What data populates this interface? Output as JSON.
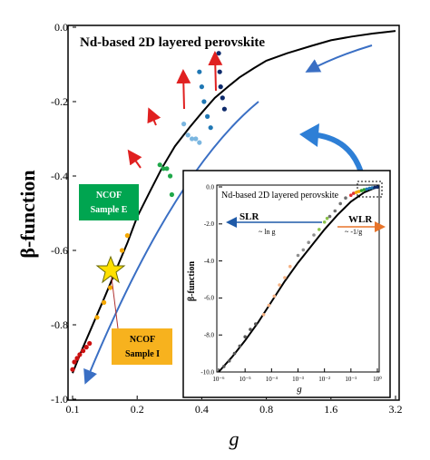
{
  "chart_data": [
    {
      "id": "main",
      "type": "scatter",
      "title": "Nd-based 2D layered perovskite",
      "xlabel": "g",
      "ylabel": "β-function",
      "x_scale": "log",
      "x_ticks": [
        "0.1",
        "0.2",
        "0.4",
        "0.8",
        "1.6",
        "3.2"
      ],
      "x_tick_values": [
        0.1,
        0.2,
        0.4,
        0.8,
        1.6,
        3.2
      ],
      "y_ticks": [
        "0.0",
        "-0.2",
        "-0.4",
        "-0.6",
        "-0.8",
        "-1.0"
      ],
      "y_tick_values": [
        0.0,
        -0.2,
        -0.4,
        -0.6,
        -0.8,
        -1.0
      ],
      "xlim": [
        0.1,
        3.2
      ],
      "ylim": [
        -1.0,
        0.0
      ],
      "grid": false,
      "annotations": [
        {
          "text": "NCOF",
          "text2": "Sample E",
          "color": "#00a550"
        },
        {
          "text": "NCOF",
          "text2": "Sample I",
          "color": "#f7b21e"
        }
      ],
      "series": [
        {
          "color": "#000000",
          "style": "line",
          "x": [
            0.1,
            0.11,
            0.12,
            0.14,
            0.16,
            0.18,
            0.2,
            0.23,
            0.26,
            0.3,
            0.35,
            0.4,
            0.46,
            0.53,
            0.6,
            0.7,
            0.8,
            1.0,
            1.3,
            1.6,
            2.0,
            2.5,
            3.2
          ],
          "y": [
            -0.93,
            -0.87,
            -0.82,
            -0.73,
            -0.65,
            -0.58,
            -0.51,
            -0.44,
            -0.38,
            -0.32,
            -0.27,
            -0.23,
            -0.19,
            -0.16,
            -0.135,
            -0.11,
            -0.09,
            -0.07,
            -0.05,
            -0.035,
            -0.025,
            -0.017,
            -0.01
          ]
        },
        {
          "color": "#cc1010",
          "style": "points",
          "x": [
            0.1,
            0.102,
            0.105,
            0.108,
            0.112,
            0.116,
            0.12
          ],
          "y": [
            -0.92,
            -0.9,
            -0.89,
            -0.88,
            -0.87,
            -0.86,
            -0.85
          ]
        },
        {
          "color": "#f5a800",
          "style": "points",
          "x": [
            0.13,
            0.14,
            0.15,
            0.16,
            0.17,
            0.18
          ],
          "y": [
            -0.78,
            -0.74,
            -0.7,
            -0.65,
            -0.6,
            -0.56
          ]
        },
        {
          "color": "#1fa84a",
          "style": "points",
          "x": [
            0.255,
            0.265,
            0.275,
            0.285,
            0.29
          ],
          "y": [
            -0.37,
            -0.38,
            -0.38,
            -0.4,
            -0.45
          ]
        },
        {
          "color": "#7bb6e0",
          "style": "points",
          "x": [
            0.33,
            0.345,
            0.36,
            0.375,
            0.39
          ],
          "y": [
            -0.26,
            -0.29,
            -0.3,
            -0.3,
            -0.31
          ]
        },
        {
          "color": "#1f77b4",
          "style": "points",
          "x": [
            0.39,
            0.4,
            0.41,
            0.425,
            0.44
          ],
          "y": [
            -0.12,
            -0.16,
            -0.2,
            -0.24,
            -0.27
          ]
        },
        {
          "color": "#0d2a6b",
          "style": "points",
          "x": [
            0.48,
            0.485,
            0.49,
            0.5,
            0.51
          ],
          "y": [
            -0.07,
            -0.12,
            -0.16,
            -0.19,
            -0.22
          ]
        }
      ]
    },
    {
      "id": "inset",
      "type": "scatter",
      "title": "Nd-based 2D layered perovskite",
      "xlabel": "g",
      "ylabel": "β-function",
      "x_scale": "log",
      "x_ticks": [
        "10⁻⁶",
        "10⁻⁵",
        "10⁻⁴",
        "10⁻³",
        "10⁻²",
        "10⁻¹",
        "10⁰"
      ],
      "x_tick_values": [
        -6,
        -5,
        -4,
        -3,
        -2,
        -1,
        0
      ],
      "y_ticks": [
        "0.0",
        "-2.0",
        "-4.0",
        "-6.0",
        "-8.0",
        "-10.0"
      ],
      "y_tick_values": [
        0,
        -2,
        -4,
        -6,
        -8,
        -10
      ],
      "xlim": [
        1e-06,
        1.0
      ],
      "ylim": [
        -10.0,
        0.0
      ],
      "grid": false,
      "annotations": [
        {
          "text": "SLR",
          "text2": "~ ln g",
          "color": "#1f5aa8"
        },
        {
          "text": "WLR",
          "text2": "~ -1/g",
          "color": "#e8742a"
        }
      ],
      "series": [
        {
          "color": "#000000",
          "style": "line",
          "x_log": [
            -6,
            -5.5,
            -5,
            -4.5,
            -4,
            -3.5,
            -3,
            -2.5,
            -2,
            -1.5,
            -1,
            -0.5,
            0
          ],
          "y": [
            -10,
            -9.2,
            -8.3,
            -7.3,
            -6.2,
            -5.1,
            -4.1,
            -3.2,
            -2.3,
            -1.5,
            -0.8,
            -0.3,
            0
          ]
        },
        {
          "color": "#555555",
          "style": "points",
          "x_log": [
            -5.8,
            -5.6,
            -5.4,
            -5.2,
            -5.0,
            -4.8,
            -4.6
          ],
          "y": [
            -9.7,
            -9.4,
            -9.0,
            -8.6,
            -8.1,
            -7.7,
            -7.4
          ]
        },
        {
          "color": "#f4b183",
          "style": "points",
          "x_log": [
            -4.3,
            -4.1,
            -3.9,
            -3.7,
            -3.5,
            -3.3
          ],
          "y": [
            -6.9,
            -6.4,
            -5.9,
            -5.3,
            -4.9,
            -4.3
          ]
        },
        {
          "color": "#909090",
          "style": "points",
          "x_log": [
            -3.0,
            -2.8,
            -2.6,
            -2.4
          ],
          "y": [
            -3.7,
            -3.4,
            -3.0,
            -2.6
          ]
        },
        {
          "color": "#8bc34a",
          "style": "points",
          "x_log": [
            -2.2,
            -2.0,
            -1.9
          ],
          "y": [
            -2.3,
            -1.9,
            -1.7
          ]
        },
        {
          "color": "#707070",
          "style": "points",
          "x_log": [
            -1.8,
            -1.6,
            -1.4,
            -1.2
          ],
          "y": [
            -1.6,
            -1.3,
            -0.9,
            -0.6
          ]
        },
        {
          "color": "#e03030",
          "style": "points",
          "x_log": [
            -1.0,
            -0.9
          ],
          "y": [
            -0.45,
            -0.35
          ]
        },
        {
          "color": "#f5a800",
          "style": "points",
          "x_log": [
            -0.8,
            -0.7
          ],
          "y": [
            -0.3,
            -0.25
          ]
        },
        {
          "color": "#2ca02c",
          "style": "points",
          "x_log": [
            -0.6,
            -0.5
          ],
          "y": [
            -0.2,
            -0.15
          ]
        },
        {
          "color": "#1f77b4",
          "style": "points",
          "x_log": [
            -0.4,
            -0.3,
            -0.2
          ],
          "y": [
            -0.12,
            -0.08,
            -0.05
          ]
        },
        {
          "color": "#0d2a6b",
          "style": "points",
          "x_log": [
            -0.1,
            0.0
          ],
          "y": [
            -0.03,
            -0.01
          ]
        }
      ]
    }
  ]
}
